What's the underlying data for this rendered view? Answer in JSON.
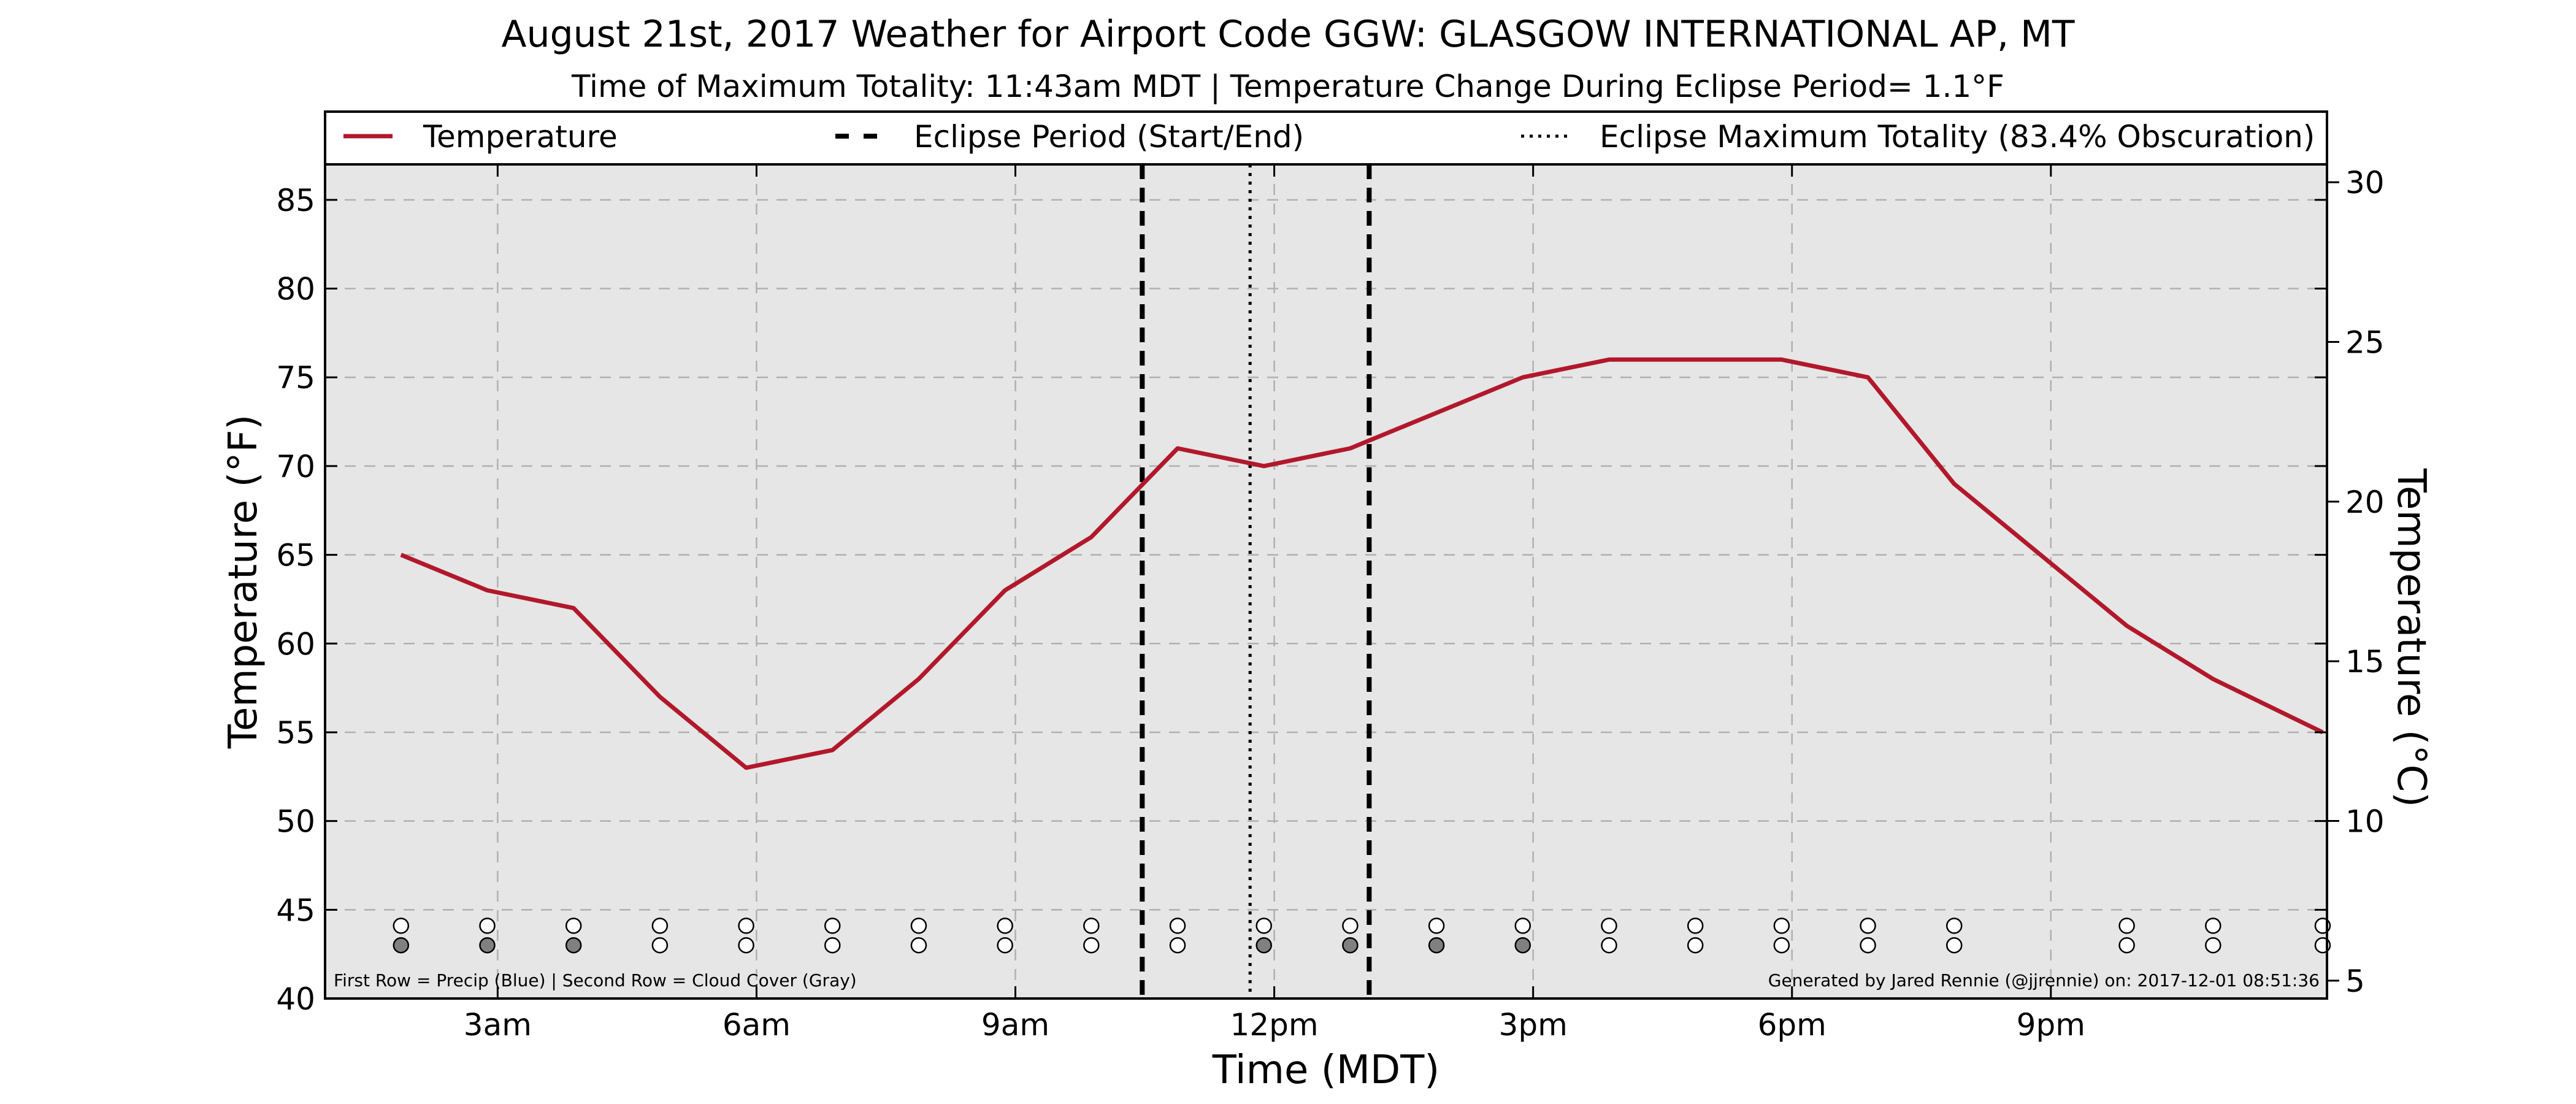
{
  "chart_data": {
    "type": "line",
    "title": "August 21st, 2017 Weather for Airport Code GGW: GLASGOW INTERNATIONAL AP, MT",
    "subtitle": "Time of Maximum Totality: 11:43am MDT | Temperature Change During Eclipse Period= 1.1°F",
    "xlabel": "Time (MDT)",
    "ylabel": "Temperature (°F)",
    "ylabel_right": "Temperature (°C)",
    "xlim": [
      1.0,
      24.2
    ],
    "ylim": [
      40,
      87
    ],
    "ylim_right": [
      4.44,
      30.56
    ],
    "x_ticks": [
      {
        "x": 3,
        "label": "3am"
      },
      {
        "x": 6,
        "label": "6am"
      },
      {
        "x": 9,
        "label": "9am"
      },
      {
        "x": 12,
        "label": "12pm"
      },
      {
        "x": 15,
        "label": "3pm"
      },
      {
        "x": 18,
        "label": "6pm"
      },
      {
        "x": 21,
        "label": "9pm"
      }
    ],
    "y_ticks": [
      40,
      45,
      50,
      55,
      60,
      65,
      70,
      75,
      80,
      85
    ],
    "y_ticks_right": [
      5,
      10,
      15,
      20,
      25,
      30
    ],
    "grid": true,
    "legend_placement": "top (above plot)",
    "legend": [
      {
        "label": "Temperature",
        "style": "solid",
        "color": "#b2182b"
      },
      {
        "label": "Eclipse Period (Start/End)",
        "style": "dashed",
        "color": "#000000"
      },
      {
        "label": "Eclipse Maximum Totality (83.4% Obscuration)",
        "style": "dotted",
        "color": "#000000"
      }
    ],
    "series": [
      {
        "name": "Temperature",
        "color": "#b2182b",
        "points": [
          [
            1.88,
            65
          ],
          [
            2.88,
            63
          ],
          [
            3.88,
            62
          ],
          [
            4.88,
            57
          ],
          [
            5.88,
            53
          ],
          [
            6.88,
            54
          ],
          [
            7.88,
            58
          ],
          [
            8.88,
            63
          ],
          [
            9.88,
            66
          ],
          [
            10.88,
            71
          ],
          [
            11.88,
            70
          ],
          [
            12.88,
            71
          ],
          [
            13.88,
            73
          ],
          [
            14.88,
            75
          ],
          [
            15.88,
            76
          ],
          [
            16.88,
            76
          ],
          [
            17.88,
            76
          ],
          [
            18.88,
            75
          ],
          [
            19.88,
            69
          ],
          [
            20.88,
            65
          ],
          [
            21.88,
            61
          ],
          [
            22.88,
            58
          ],
          [
            24.15,
            55
          ]
        ]
      }
    ],
    "eclipse_start": 10.47,
    "eclipse_end": 13.1,
    "max_totality": 11.72,
    "marker_rows": {
      "x": [
        1.88,
        2.88,
        3.88,
        4.88,
        5.88,
        6.88,
        7.88,
        8.88,
        9.88,
        10.88,
        11.88,
        12.88,
        13.88,
        14.88,
        15.88,
        16.88,
        17.88,
        18.88,
        19.88,
        21.88,
        22.88,
        24.15
      ],
      "precip_y": 44.1,
      "cloud_y": 43.0,
      "cloud_filled": [
        true,
        true,
        true,
        false,
        false,
        false,
        false,
        false,
        false,
        false,
        true,
        true,
        true,
        true,
        false,
        false,
        false,
        false,
        false,
        false,
        false,
        false
      ],
      "precip_fill": "#ffffff",
      "cloud_fill": "#808080"
    },
    "footnote_left": "First Row = Precip (Blue) | Second Row = Cloud Cover (Gray)",
    "footnote_right": "Generated by Jared Rennie (@jjrennie) on: 2017-12-01 08:51:36",
    "plot_background": "#e6e6e6"
  }
}
